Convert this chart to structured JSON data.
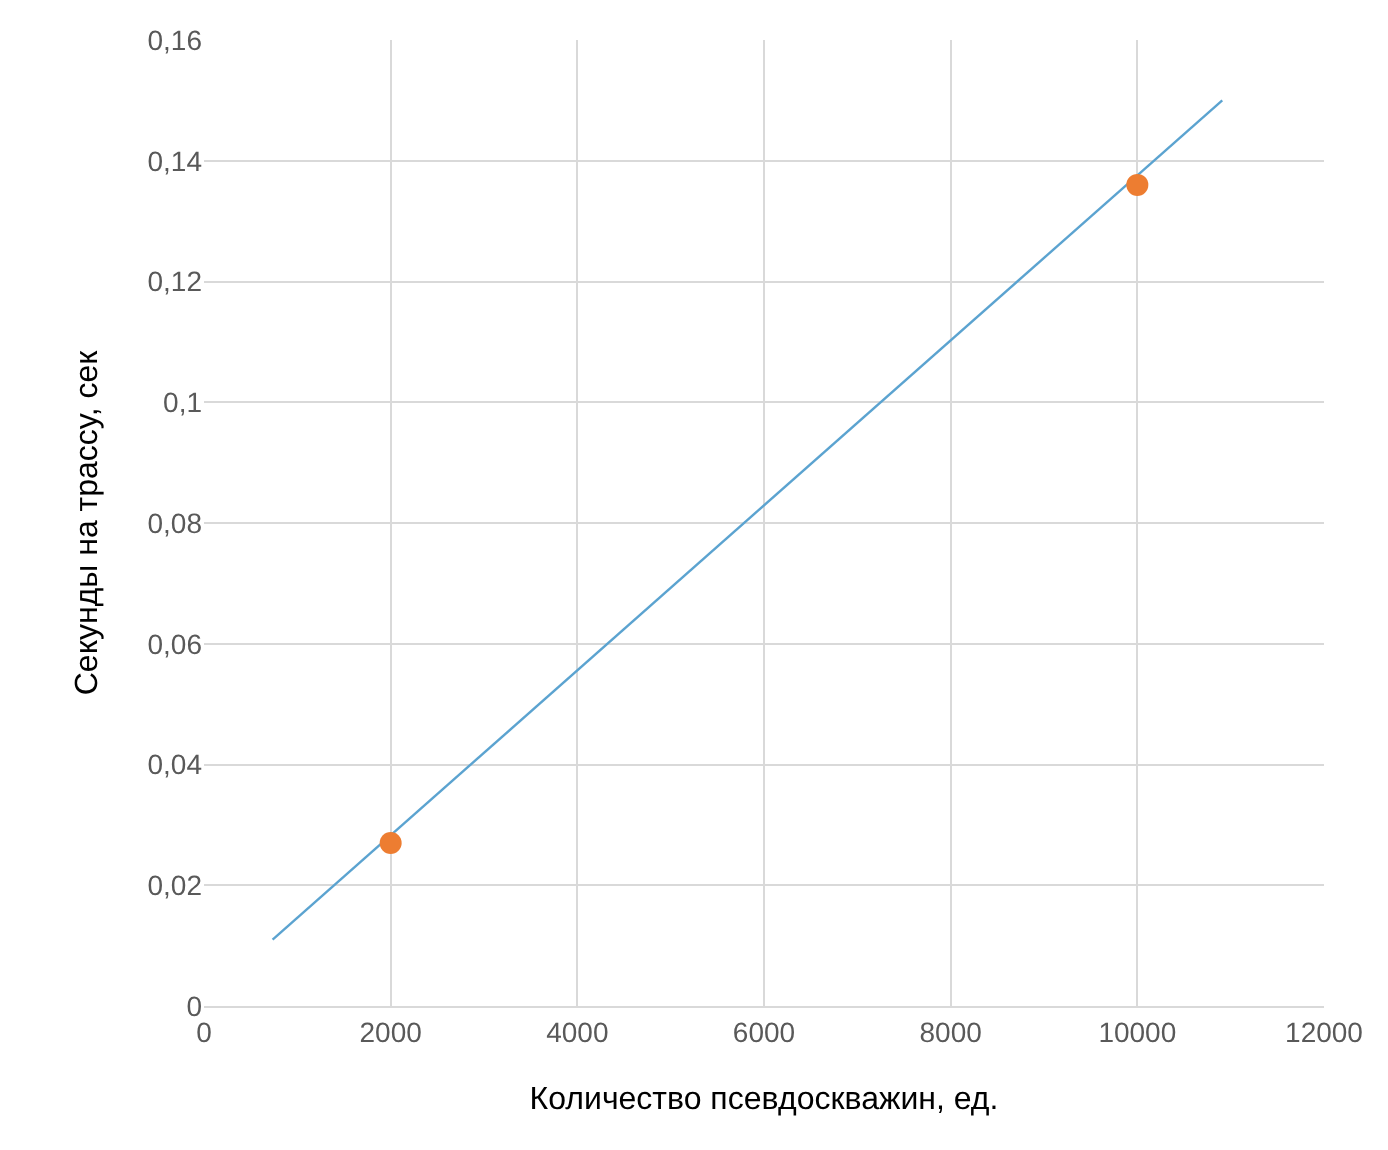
{
  "chart_data": {
    "type": "scatter",
    "xlabel": "Количество псевдоскважин, ед.",
    "ylabel": "Секунды на трассу, сек",
    "x": [
      2000,
      10000
    ],
    "values": [
      0.027,
      0.136
    ],
    "color": "#ed7d31",
    "marker": "circle",
    "series": [
      {
        "type": "line",
        "x": [
          735,
          10910
        ],
        "values": [
          0.011,
          0.15
        ],
        "color": "#5ba3d0",
        "line_style": "solid",
        "marker": "none"
      }
    ],
    "xlim": [
      0,
      12000
    ],
    "xticks": [
      0,
      2000,
      4000,
      6000,
      8000,
      10000,
      12000
    ],
    "ylim": [
      0,
      0.16
    ],
    "yticks": [
      0,
      {
        "value": 0.02,
        "label": "0,02"
      },
      {
        "value": 0.04,
        "label": "0,04"
      },
      {
        "value": 0.06,
        "label": "0,06"
      },
      {
        "value": 0.08,
        "label": "0,08"
      },
      {
        "value": 0.1,
        "label": "0,1"
      },
      {
        "value": 0.12,
        "label": "0,12"
      },
      {
        "value": 0.14,
        "label": "0,14"
      },
      {
        "value": 0.16,
        "label": "0,16"
      }
    ],
    "grid": true
  }
}
